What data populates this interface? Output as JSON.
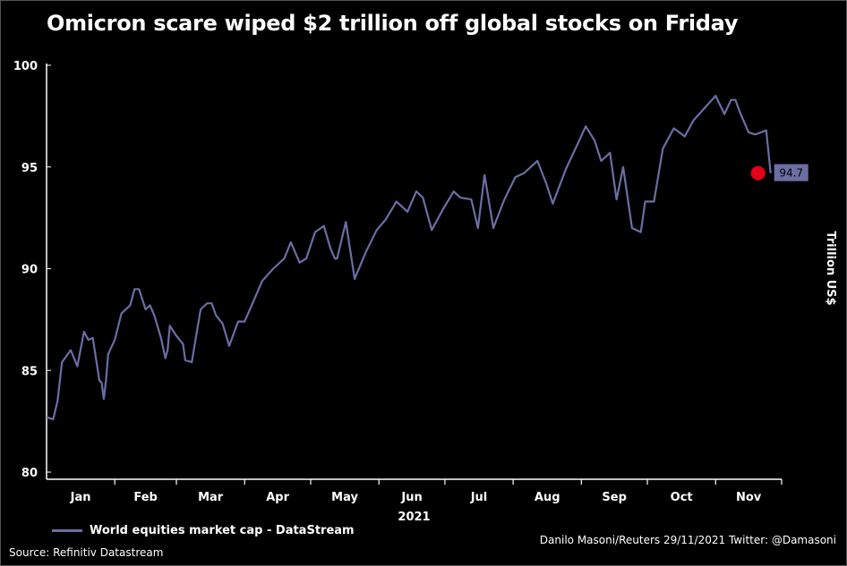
{
  "title": "Omicron scare wiped $2 trillion off global stocks on Friday",
  "source": "Source: Refinitiv Datastream",
  "credit": "Danilo Masoni/Reuters 29/11/2021 Twitter: @Damasoni",
  "colors": {
    "background": "#000000",
    "series": "#6b6ea3",
    "marker": "#e3001b",
    "axis": "#ffffff",
    "label_box": "#6b6ea3"
  },
  "chart_data": {
    "type": "line",
    "title": "Omicron scare wiped $2 trillion off global stocks on Friday",
    "xlabel": "2021",
    "ylabel": "Trillion US$",
    "ylim": [
      80,
      100
    ],
    "yticks": [
      80,
      85,
      90,
      95,
      100
    ],
    "x_categories": [
      "Jan",
      "Feb",
      "Mar",
      "Apr",
      "May",
      "Jun",
      "Jul",
      "Aug",
      "Sep",
      "Oct",
      "Nov"
    ],
    "grid": false,
    "legend_position": "bottom-left",
    "last_value_label": "94.7",
    "series": [
      {
        "name": "World equities market cap - DataStream",
        "x": [
          "2021-01-01",
          "2021-01-04",
          "2021-01-06",
          "2021-01-08",
          "2021-01-12",
          "2021-01-15",
          "2021-01-18",
          "2021-01-20",
          "2021-01-22",
          "2021-01-25",
          "2021-01-26",
          "2021-01-27",
          "2021-01-28",
          "2021-01-29",
          "2021-02-01",
          "2021-02-04",
          "2021-02-08",
          "2021-02-10",
          "2021-02-12",
          "2021-02-15",
          "2021-02-17",
          "2021-02-19",
          "2021-02-22",
          "2021-02-24",
          "2021-02-25",
          "2021-02-26",
          "2021-03-01",
          "2021-03-04",
          "2021-03-05",
          "2021-03-08",
          "2021-03-10",
          "2021-03-12",
          "2021-03-15",
          "2021-03-17",
          "2021-03-19",
          "2021-03-22",
          "2021-03-25",
          "2021-03-29",
          "2021-04-01",
          "2021-04-05",
          "2021-04-09",
          "2021-04-14",
          "2021-04-19",
          "2021-04-22",
          "2021-04-26",
          "2021-04-29",
          "2021-05-03",
          "2021-05-07",
          "2021-05-10",
          "2021-05-12",
          "2021-05-13",
          "2021-05-17",
          "2021-05-21",
          "2021-05-26",
          "2021-05-31",
          "2021-06-04",
          "2021-06-09",
          "2021-06-14",
          "2021-06-18",
          "2021-06-21",
          "2021-06-25",
          "2021-06-30",
          "2021-07-05",
          "2021-07-08",
          "2021-07-13",
          "2021-07-16",
          "2021-07-19",
          "2021-07-23",
          "2021-07-28",
          "2021-08-02",
          "2021-08-06",
          "2021-08-12",
          "2021-08-16",
          "2021-08-19",
          "2021-08-25",
          "2021-08-31",
          "2021-09-03",
          "2021-09-07",
          "2021-09-10",
          "2021-09-14",
          "2021-09-17",
          "2021-09-20",
          "2021-09-24",
          "2021-09-28",
          "2021-09-30",
          "2021-10-04",
          "2021-10-08",
          "2021-10-13",
          "2021-10-18",
          "2021-10-22",
          "2021-10-27",
          "2021-11-01",
          "2021-11-05",
          "2021-11-08",
          "2021-11-10",
          "2021-11-12",
          "2021-11-16",
          "2021-11-19",
          "2021-11-24",
          "2021-11-26"
        ],
        "y": [
          82.7,
          82.6,
          83.5,
          85.4,
          86.0,
          85.2,
          86.9,
          86.5,
          86.6,
          84.5,
          84.4,
          83.6,
          84.5,
          85.8,
          86.5,
          87.8,
          88.2,
          89.0,
          89.0,
          88.0,
          88.2,
          87.7,
          86.6,
          85.6,
          86.0,
          87.2,
          86.7,
          86.3,
          85.5,
          85.4,
          86.7,
          88.0,
          88.3,
          88.3,
          87.7,
          87.3,
          86.2,
          87.4,
          87.4,
          88.4,
          89.4,
          90.0,
          90.5,
          91.3,
          90.3,
          90.5,
          91.8,
          92.1,
          91.0,
          90.5,
          90.5,
          92.3,
          89.5,
          90.8,
          91.9,
          92.4,
          93.3,
          92.8,
          93.8,
          93.5,
          91.9,
          92.9,
          93.8,
          93.5,
          93.4,
          92.0,
          94.6,
          92.0,
          93.4,
          94.5,
          94.7,
          95.3,
          94.2,
          93.2,
          94.9,
          96.3,
          97.0,
          96.3,
          95.3,
          95.7,
          93.4,
          95.0,
          92.0,
          91.8,
          93.3,
          93.3,
          95.9,
          96.9,
          96.5,
          97.3,
          97.9,
          98.5,
          97.6,
          98.3,
          98.3,
          97.7,
          96.7,
          96.6,
          96.8,
          94.7
        ]
      }
    ]
  }
}
